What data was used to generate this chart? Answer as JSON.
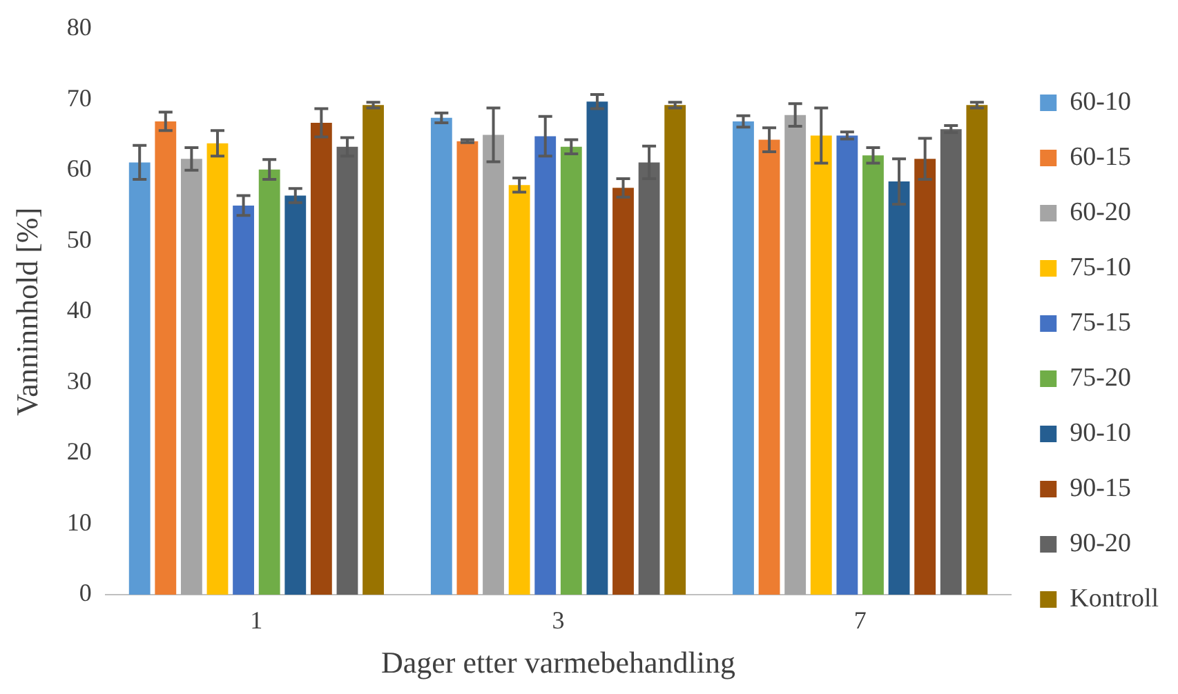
{
  "chart_data": {
    "type": "bar",
    "xlabel": "Dager etter varmebehandling",
    "ylabel": "Vanninnhold [%]",
    "categories": [
      "1",
      "3",
      "7"
    ],
    "ylim": [
      0,
      80
    ],
    "yticks": [
      0,
      10,
      20,
      30,
      40,
      50,
      60,
      70,
      80
    ],
    "grid": false,
    "legend": "right",
    "series": [
      {
        "name": "60-10",
        "color": "#5b9bd5",
        "values": [
          61.1,
          67.4,
          66.9
        ],
        "errors": [
          2.4,
          0.7,
          0.8
        ]
      },
      {
        "name": "60-15",
        "color": "#ed7d31",
        "values": [
          66.9,
          64.1,
          64.3
        ],
        "errors": [
          1.3,
          0.2,
          1.7
        ]
      },
      {
        "name": "60-20",
        "color": "#a5a5a5",
        "values": [
          61.6,
          65.0,
          67.8
        ],
        "errors": [
          1.6,
          3.8,
          1.6
        ]
      },
      {
        "name": "75-10",
        "color": "#ffc000",
        "values": [
          63.8,
          57.9,
          64.9
        ],
        "errors": [
          1.8,
          1.0,
          3.9
        ]
      },
      {
        "name": "75-15",
        "color": "#4472c4",
        "values": [
          55.0,
          64.8,
          64.9
        ],
        "errors": [
          1.4,
          2.8,
          0.5
        ]
      },
      {
        "name": "75-20",
        "color": "#70ad47",
        "values": [
          60.1,
          63.3,
          62.1
        ],
        "errors": [
          1.4,
          1.0,
          1.1
        ]
      },
      {
        "name": "90-10",
        "color": "#255e91",
        "values": [
          56.4,
          69.7,
          58.4
        ],
        "errors": [
          1.0,
          1.0,
          3.2
        ]
      },
      {
        "name": "90-15",
        "color": "#9e480e",
        "values": [
          66.7,
          57.5,
          61.6
        ],
        "errors": [
          2.0,
          1.3,
          2.9
        ]
      },
      {
        "name": "90-20",
        "color": "#636363",
        "values": [
          63.3,
          61.1,
          65.8
        ],
        "errors": [
          1.3,
          2.3,
          0.5
        ]
      },
      {
        "name": "Kontroll",
        "color": "#997300",
        "values": [
          69.2,
          69.2,
          69.2
        ],
        "errors": [
          0.4,
          0.4,
          0.4
        ]
      }
    ]
  }
}
